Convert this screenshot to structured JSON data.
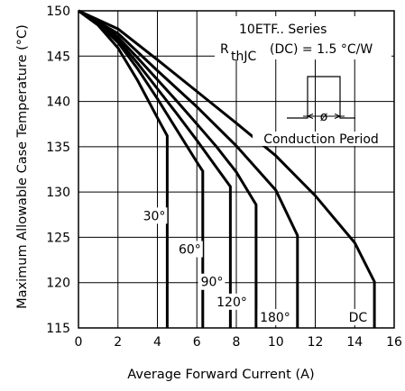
{
  "chart_data": {
    "type": "line",
    "xlabel": "Average Forward Current (A)",
    "ylabel": "Maximum Allowable Case Temperature (°C)",
    "xlim": [
      0,
      16
    ],
    "ylim": [
      115,
      150
    ],
    "xticks": [
      0,
      2,
      4,
      6,
      8,
      10,
      12,
      14,
      16
    ],
    "yticks": [
      115,
      120,
      125,
      130,
      135,
      140,
      145,
      150
    ],
    "grid": true,
    "annotations": {
      "series_name": "10ETF.. Series",
      "rth_prefix": "R",
      "rth_sub": "thJC",
      "rth_suffix": "(DC) = 1.5 °C/W",
      "conduction": "Conduction Period",
      "phi": "ø"
    },
    "series": [
      {
        "name": "30°",
        "x": [
          0,
          1,
          2,
          3,
          4,
          4.5,
          4.5
        ],
        "y": [
          150,
          148.4,
          145.9,
          142.3,
          138.2,
          136.2,
          115
        ]
      },
      {
        "name": "60°",
        "x": [
          0,
          1,
          2,
          3,
          4,
          5,
          6,
          6.3,
          6.3
        ],
        "y": [
          150,
          148.6,
          146.5,
          143.6,
          140.3,
          136.8,
          133.3,
          132.3,
          115
        ]
      },
      {
        "name": "90°",
        "x": [
          0,
          1,
          2,
          3,
          4,
          5,
          6,
          7,
          7.7,
          7.7
        ],
        "y": [
          150,
          148.8,
          146.8,
          144.2,
          141.4,
          138.6,
          135.7,
          132.7,
          130.6,
          115
        ]
      },
      {
        "name": "120°",
        "x": [
          0,
          1,
          2,
          3,
          4,
          5,
          6,
          7,
          8,
          9,
          9
        ],
        "y": [
          150,
          148.9,
          147.1,
          144.8,
          142.4,
          140,
          137.5,
          135,
          132.2,
          128.6,
          115
        ]
      },
      {
        "name": "180°",
        "x": [
          0,
          2,
          4,
          6,
          8,
          10,
          11.1,
          11.1
        ],
        "y": [
          150,
          147.5,
          143.4,
          139.4,
          135.1,
          130.2,
          125.2,
          115
        ]
      },
      {
        "name": "DC",
        "x": [
          0,
          2,
          4,
          6,
          8,
          10,
          12,
          14,
          15,
          15
        ],
        "y": [
          150,
          148,
          144.6,
          141.1,
          137.6,
          134,
          129.6,
          124.4,
          120.1,
          115
        ]
      }
    ]
  }
}
